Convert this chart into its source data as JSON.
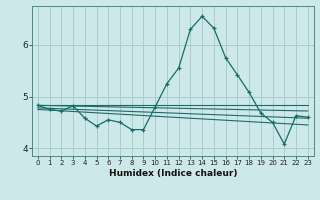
{
  "xlabel": "Humidex (Indice chaleur)",
  "background_color": "#cce8e8",
  "grid_color": "#aacccc",
  "line_color": "#1a6b6b",
  "xlim": [
    -0.5,
    23.5
  ],
  "ylim": [
    3.85,
    6.75
  ],
  "yticks": [
    4,
    5,
    6
  ],
  "xticks": [
    0,
    1,
    2,
    3,
    4,
    5,
    6,
    7,
    8,
    9,
    10,
    11,
    12,
    13,
    14,
    15,
    16,
    17,
    18,
    19,
    20,
    21,
    22,
    23
  ],
  "main_x": [
    0,
    1,
    2,
    3,
    4,
    5,
    6,
    7,
    8,
    9,
    10,
    11,
    12,
    13,
    14,
    15,
    16,
    17,
    18,
    19,
    20,
    21,
    22,
    23
  ],
  "main_y": [
    4.83,
    4.75,
    4.72,
    4.82,
    4.58,
    4.43,
    4.55,
    4.5,
    4.36,
    4.36,
    4.8,
    5.25,
    5.55,
    6.3,
    6.55,
    6.32,
    5.75,
    5.42,
    5.08,
    4.68,
    4.5,
    4.08,
    4.63,
    4.6
  ],
  "line2_x": [
    0,
    23
  ],
  "line2_y": [
    4.83,
    4.83
  ],
  "line3_x": [
    0,
    23
  ],
  "line3_y": [
    4.83,
    4.72
  ],
  "line4_x": [
    0,
    23
  ],
  "line4_y": [
    4.78,
    4.58
  ],
  "line5_x": [
    0,
    23
  ],
  "line5_y": [
    4.75,
    4.45
  ]
}
